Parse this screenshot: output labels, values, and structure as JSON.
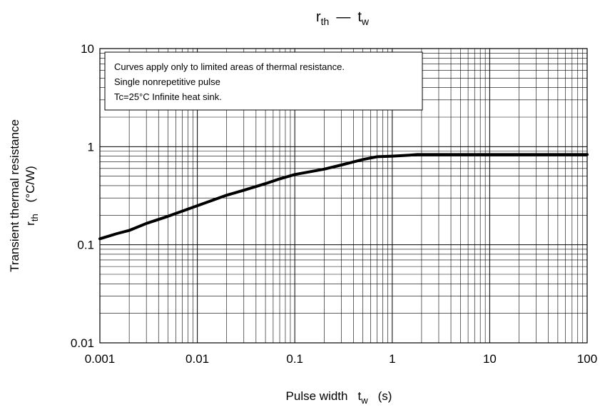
{
  "chart_data": {
    "type": "line",
    "title": {
      "symbol": "r",
      "symbol_sub": "th",
      "dash": "—",
      "symbol2": "t",
      "symbol2_sub": "w"
    },
    "xlabel": {
      "text": "Pulse width",
      "symbol": "t",
      "symbol_sub": "w",
      "unit": "(s)"
    },
    "ylabel": {
      "line1": "Transient thermal resistance",
      "symbol": "r",
      "symbol_sub": "th",
      "unit": "(°C/W)"
    },
    "x_scale": "log",
    "y_scale": "log",
    "xlim": [
      0.001,
      100
    ],
    "ylim": [
      0.01,
      10
    ],
    "x_ticks": [
      0.001,
      0.01,
      0.1,
      1,
      10,
      100
    ],
    "x_tick_labels": [
      "0.001",
      "0.01",
      "0.1",
      "1",
      "10",
      "100"
    ],
    "y_ticks": [
      0.01,
      0.1,
      1,
      10
    ],
    "y_tick_labels": [
      "0.01",
      "0.1",
      "1",
      "10"
    ],
    "grid": true,
    "annotation": [
      "Curves apply only to limited areas of thermal resistance.",
      "Single nonrepetitive pulse",
      "Tc=25°C Infinite heat sink."
    ],
    "series": [
      {
        "x": [
          0.001,
          0.0015,
          0.002,
          0.003,
          0.005,
          0.007,
          0.01,
          0.02,
          0.03,
          0.05,
          0.07,
          0.1,
          0.2,
          0.3,
          0.5,
          0.7,
          1,
          1.5,
          1.8,
          3,
          10,
          30,
          100
        ],
        "y": [
          0.115,
          0.13,
          0.14,
          0.165,
          0.195,
          0.22,
          0.25,
          0.32,
          0.36,
          0.42,
          0.47,
          0.52,
          0.59,
          0.65,
          0.74,
          0.79,
          0.8,
          0.82,
          0.83,
          0.83,
          0.83,
          0.83,
          0.83
        ]
      }
    ],
    "colors": {
      "line": "#000000",
      "grid": "#000000",
      "background": "#ffffff"
    }
  }
}
